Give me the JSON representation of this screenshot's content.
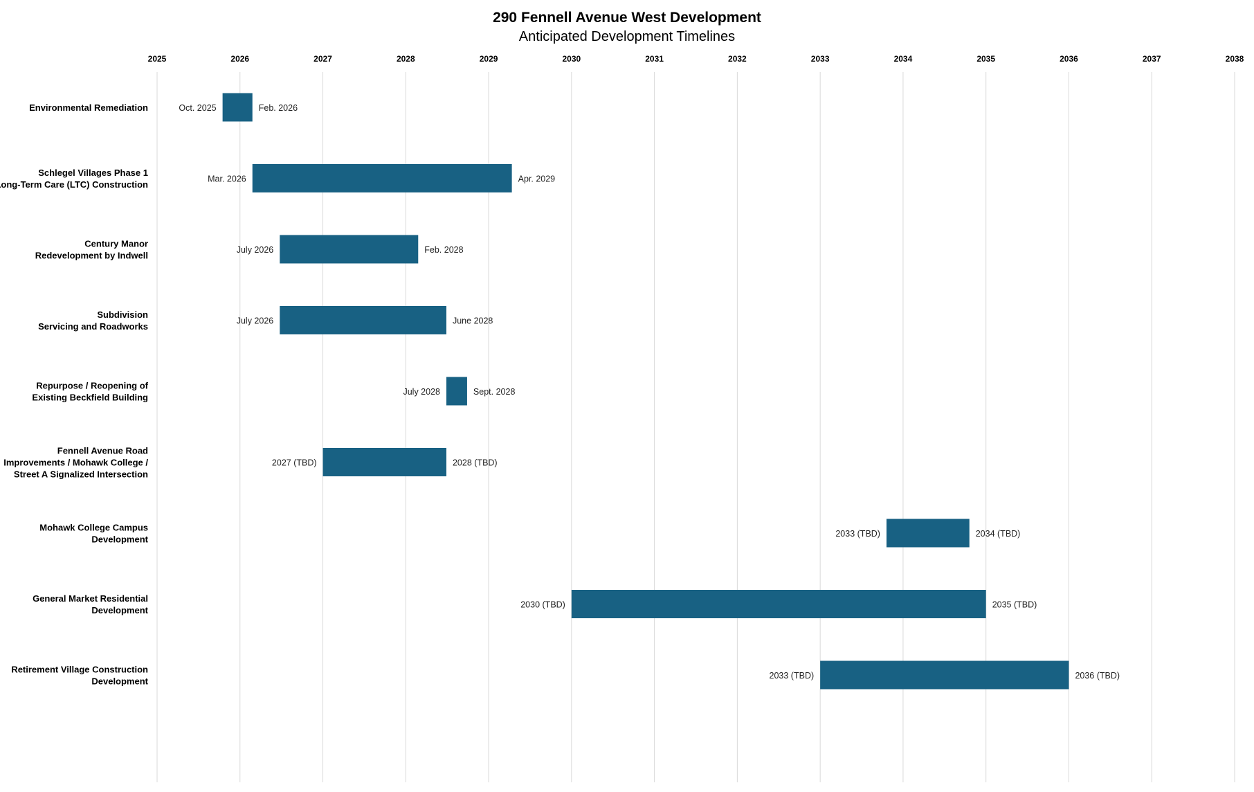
{
  "chart_data": {
    "type": "gantt",
    "title": "290 Fennell Avenue West Development",
    "subtitle": "Anticipated Development Timelines",
    "x_range": [
      2025,
      2038
    ],
    "years": [
      "2025",
      "2026",
      "2027",
      "2028",
      "2029",
      "2030",
      "2031",
      "2032",
      "2033",
      "2034",
      "2035",
      "2036",
      "2037",
      "2038"
    ],
    "bar_color": "#186183",
    "grid": true,
    "tasks": [
      {
        "name": [
          "Environmental Remediation"
        ],
        "start": 2025.79,
        "end": 2026.15,
        "start_label": "Oct. 2025",
        "end_label": "Feb. 2026"
      },
      {
        "name": [
          "Schlegel Villages Phase 1",
          "Long-Term Care (LTC) Construction"
        ],
        "start": 2026.15,
        "end": 2029.28,
        "start_label": "Mar. 2026",
        "end_label": "Apr. 2029"
      },
      {
        "name": [
          "Century Manor",
          "Redevelopment by Indwell"
        ],
        "start": 2026.48,
        "end": 2028.15,
        "start_label": "July 2026",
        "end_label": "Feb. 2028"
      },
      {
        "name": [
          "Subdivision",
          "Servicing and Roadworks"
        ],
        "start": 2026.48,
        "end": 2028.49,
        "start_label": "July 2026",
        "end_label": "June 2028"
      },
      {
        "name": [
          "Repurpose / Reopening of",
          "Existing Beckfield Building"
        ],
        "start": 2028.49,
        "end": 2028.74,
        "start_label": "July 2028",
        "end_label": "Sept. 2028"
      },
      {
        "name": [
          "Fennell Avenue Road",
          "Improvements / Mohawk College /",
          "Street A Signalized Intersection"
        ],
        "start": 2027.0,
        "end": 2028.49,
        "start_label": "2027 (TBD)",
        "end_label": "2028 (TBD)"
      },
      {
        "name": [
          "Mohawk College Campus",
          "Development"
        ],
        "start": 2033.8,
        "end": 2034.8,
        "start_label": "2033 (TBD)",
        "end_label": "2034 (TBD)"
      },
      {
        "name": [
          "General Market Residential",
          "Development"
        ],
        "start": 2030.0,
        "end": 2035.0,
        "start_label": "2030 (TBD)",
        "end_label": "2035 (TBD)"
      },
      {
        "name": [
          "Retirement Village Construction",
          "Development"
        ],
        "start": 2033.0,
        "end": 2036.0,
        "start_label": "2033 (TBD)",
        "end_label": "2036 (TBD)"
      }
    ]
  }
}
